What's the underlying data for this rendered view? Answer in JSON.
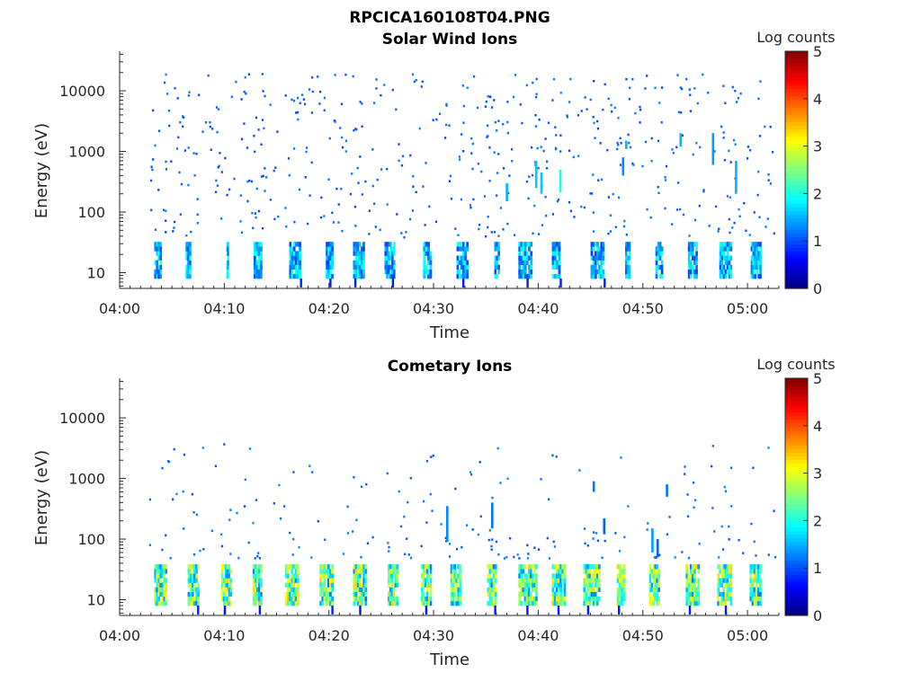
{
  "figure_title": "RPCICA160108T04.PNG",
  "chart_data": [
    {
      "type": "heatmap",
      "title": "Solar Wind Ions",
      "xlabel": "Time",
      "ylabel": "Energy (eV)",
      "xticks": [
        "04:00",
        "04:10",
        "04:20",
        "04:30",
        "04:40",
        "04:50",
        "05:00"
      ],
      "xtick_minutes": [
        0,
        10,
        20,
        30,
        40,
        50,
        60
      ],
      "xlim_minutes": [
        0,
        63
      ],
      "yticks": [
        "10",
        "100",
        "1000",
        "10000"
      ],
      "ytick_values": [
        10,
        100,
        1000,
        10000
      ],
      "yscale": "log",
      "ylim": [
        5.5,
        45000
      ],
      "colorbar_label": "Log counts",
      "colorbar_ticks": [
        "0",
        "1",
        "2",
        "3",
        "4",
        "5"
      ],
      "clim": [
        0,
        5
      ],
      "colormap": "jet",
      "low_band_energy_ev": [
        8,
        30
      ],
      "low_band_intervals_minutes": [
        [
          3.3,
          4.0
        ],
        [
          6.3,
          6.8
        ],
        [
          10.2,
          10.4
        ],
        [
          12.8,
          13.6
        ],
        [
          16.2,
          17.3
        ],
        [
          19.7,
          20.4
        ],
        [
          22.3,
          23.4
        ],
        [
          25.3,
          26.3
        ],
        [
          29.0,
          29.8
        ],
        [
          32.2,
          33.3
        ],
        [
          35.8,
          36.3
        ],
        [
          38.1,
          39.4
        ],
        [
          41.3,
          42.1
        ],
        [
          45.0,
          46.3
        ],
        [
          48.3,
          48.8
        ],
        [
          51.2,
          51.9
        ],
        [
          54.3,
          55.2
        ],
        [
          57.3,
          58.5
        ],
        [
          60.3,
          61.3
        ]
      ],
      "streaks": [
        {
          "minute": 42.0,
          "e_low": 210,
          "e_high": 500,
          "value": 2.0
        },
        {
          "minute": 39.7,
          "e_low": 250,
          "e_high": 700,
          "value": 1.6
        },
        {
          "minute": 48.3,
          "e_low": 1100,
          "e_high": 1500,
          "value": 1.5
        },
        {
          "minute": 48.0,
          "e_low": 400,
          "e_high": 800,
          "value": 1.3
        },
        {
          "minute": 53.5,
          "e_low": 1200,
          "e_high": 2000,
          "value": 1.5
        },
        {
          "minute": 56.6,
          "e_low": 600,
          "e_high": 2000,
          "value": 1.4
        },
        {
          "minute": 58.8,
          "e_low": 200,
          "e_high": 700,
          "value": 1.5
        },
        {
          "minute": 36.9,
          "e_low": 150,
          "e_high": 300,
          "value": 1.5
        },
        {
          "minute": 40.2,
          "e_low": 200,
          "e_high": 450,
          "value": 1.6
        }
      ]
    },
    {
      "type": "heatmap",
      "title": "Cometary Ions",
      "xlabel": "Time",
      "ylabel": "Energy (eV)",
      "xticks": [
        "04:00",
        "04:10",
        "04:20",
        "04:30",
        "04:40",
        "04:50",
        "05:00"
      ],
      "xtick_minutes": [
        0,
        10,
        20,
        30,
        40,
        50,
        60
      ],
      "xlim_minutes": [
        0,
        63
      ],
      "yticks": [
        "10",
        "100",
        "1000",
        "10000"
      ],
      "ytick_values": [
        10,
        100,
        1000,
        10000
      ],
      "yscale": "log",
      "ylim": [
        5.5,
        45000
      ],
      "colorbar_label": "Log counts",
      "colorbar_ticks": [
        "0",
        "1",
        "2",
        "3",
        "4",
        "5"
      ],
      "clim": [
        0,
        5
      ],
      "colormap": "jet",
      "low_band_energy_ev": [
        8,
        35
      ],
      "low_band_intervals_minutes": [
        [
          3.3,
          4.5
        ],
        [
          6.5,
          7.6
        ],
        [
          9.7,
          10.7
        ],
        [
          12.7,
          13.6
        ],
        [
          15.8,
          17.1
        ],
        [
          19.1,
          20.4
        ],
        [
          22.3,
          23.6
        ],
        [
          25.6,
          26.6
        ],
        [
          28.8,
          29.8
        ],
        [
          31.6,
          32.6
        ],
        [
          35.1,
          36.0
        ],
        [
          38.1,
          39.9
        ],
        [
          41.3,
          42.6
        ],
        [
          44.3,
          45.9
        ],
        [
          47.5,
          48.3
        ],
        [
          50.6,
          51.6
        ],
        [
          54.1,
          55.4
        ],
        [
          57.1,
          58.5
        ],
        [
          60.2,
          61.3
        ]
      ],
      "streaks": [
        {
          "minute": 31.2,
          "e_low": 90,
          "e_high": 350,
          "value": 1.3
        },
        {
          "minute": 35.5,
          "e_low": 150,
          "e_high": 400,
          "value": 1.2
        },
        {
          "minute": 45.2,
          "e_low": 600,
          "e_high": 900,
          "value": 1.2
        },
        {
          "minute": 50.8,
          "e_low": 60,
          "e_high": 150,
          "value": 1.4
        },
        {
          "minute": 51.3,
          "e_low": 50,
          "e_high": 100,
          "value": 1.1
        },
        {
          "minute": 52.2,
          "e_low": 500,
          "e_high": 800,
          "value": 1.2
        },
        {
          "minute": 46.2,
          "e_low": 120,
          "e_high": 220,
          "value": 1.1
        }
      ]
    }
  ]
}
